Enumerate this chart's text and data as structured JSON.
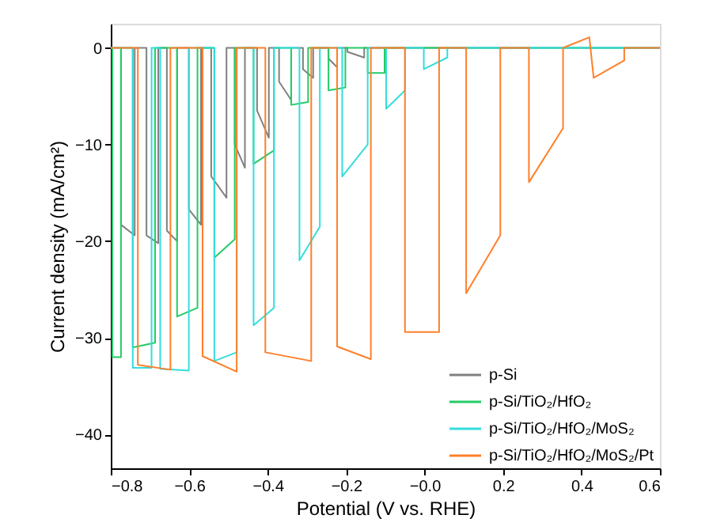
{
  "chart_data": {
    "type": "line",
    "xlabel": "Potential (V vs. RHE)",
    "ylabel": "Current density (mA/cm²)",
    "xlim": [
      -0.8,
      0.6
    ],
    "xticks": [
      -0.8,
      -0.6,
      -0.4,
      -0.2,
      {
        "value": 0,
        "label": "−0.0"
      },
      0.2,
      0.4,
      0.6
    ],
    "ylim": [
      -43.5,
      2.5
    ],
    "yticks": [
      -40,
      -30,
      -20,
      -10,
      0
    ],
    "grid": false,
    "legend": "bottom right",
    "series": [
      {
        "name": "p-Si",
        "color": "#808080",
        "x": [
          -0.8,
          -0.774,
          -0.774,
          -0.739,
          -0.739,
          -0.709,
          -0.709,
          -0.679,
          -0.679,
          -0.657,
          -0.657,
          -0.631,
          -0.631,
          -0.601,
          -0.601,
          -0.57,
          -0.57,
          -0.544,
          -0.544,
          -0.505,
          -0.505,
          -0.484,
          -0.484,
          -0.458,
          -0.458,
          -0.427,
          -0.427,
          -0.397,
          -0.397,
          -0.371,
          -0.371,
          -0.34,
          -0.34,
          -0.31,
          -0.31,
          -0.284,
          -0.284,
          -0.245,
          -0.245,
          -0.223,
          -0.223,
          -0.197,
          -0.197,
          -0.154,
          -0.154,
          0.6
        ],
        "values": [
          0,
          0,
          -18.3,
          -19.4,
          0,
          0,
          -19.4,
          -20.2,
          0,
          0,
          -18.9,
          -20,
          0,
          0,
          -16.7,
          -18.3,
          0,
          0,
          -13.3,
          -15.5,
          0,
          0,
          -10,
          -12.4,
          0,
          0,
          -6.5,
          -9.3,
          0,
          0,
          -3.5,
          -5.4,
          0,
          0,
          -2.2,
          -3.1,
          0,
          0,
          -1.1,
          -2,
          0,
          0,
          -0.4,
          -1,
          0,
          0
        ]
      },
      {
        "name": "p-Si/TiO₂/HfO₂",
        "color": "#22cc66",
        "x": [
          -0.8,
          -0.796,
          -0.796,
          -0.774,
          -0.774,
          -0.744,
          -0.744,
          -0.687,
          -0.687,
          -0.631,
          -0.631,
          -0.579,
          -0.579,
          -0.536,
          -0.536,
          -0.484,
          -0.484,
          -0.436,
          -0.436,
          -0.384,
          -0.384,
          -0.34,
          -0.34,
          -0.297,
          -0.297,
          -0.245,
          -0.245,
          -0.202,
          -0.202,
          -0.145,
          -0.145,
          -0.102,
          -0.102,
          0.6
        ],
        "values": [
          0,
          0,
          -32,
          -32,
          0,
          0,
          -31,
          -30.5,
          0,
          0,
          -27.8,
          -26.9,
          0,
          0,
          -21.7,
          -19.8,
          0,
          0,
          -12,
          -10.6,
          0,
          0,
          -5.9,
          -5.6,
          0,
          0,
          -4.4,
          -4.1,
          0,
          0,
          -2.6,
          -2.6,
          0,
          0
        ]
      },
      {
        "name": "p-Si/TiO₂/HfO₂/MoS₂",
        "color": "#33dddd",
        "x": [
          -0.8,
          -0.744,
          -0.744,
          -0.696,
          -0.696,
          -0.674,
          -0.674,
          -0.601,
          -0.601,
          -0.536,
          -0.536,
          -0.479,
          -0.479,
          -0.436,
          -0.436,
          -0.384,
          -0.384,
          -0.319,
          -0.319,
          -0.267,
          -0.267,
          -0.21,
          -0.21,
          -0.145,
          -0.145,
          -0.098,
          -0.098,
          -0.05,
          -0.05,
          -0.002,
          -0.002,
          0.058,
          0.058,
          0.6
        ],
        "values": [
          0,
          0,
          -33.1,
          -33.1,
          0,
          0,
          -33.2,
          -33.4,
          0,
          0,
          -32.4,
          -31.5,
          0,
          0,
          -28.7,
          -26.9,
          0,
          0,
          -22,
          -18.5,
          0,
          0,
          -13.3,
          -10,
          0,
          0,
          -6.3,
          -4.4,
          0,
          0,
          -2.2,
          -1,
          0,
          0
        ]
      },
      {
        "name": "p-Si/TiO₂/HfO₂/MoS₂/Pt",
        "color": "#ff7f2a",
        "x": [
          -0.8,
          -0.731,
          -0.731,
          -0.648,
          -0.648,
          -0.566,
          -0.566,
          -0.479,
          -0.479,
          -0.406,
          -0.406,
          -0.289,
          -0.289,
          -0.223,
          -0.223,
          -0.137,
          -0.137,
          -0.05,
          -0.05,
          0.037,
          0.037,
          0.106,
          0.106,
          0.193,
          0.193,
          0.266,
          0.266,
          0.353,
          0.353,
          0.42,
          0.431,
          0.509,
          0.509,
          0.6
        ],
        "values": [
          0,
          0,
          -32.8,
          -33.3,
          0,
          0,
          -31.9,
          -33.5,
          0,
          0,
          -31.5,
          -32.4,
          0,
          0,
          -30.9,
          -32.2,
          0,
          0,
          -29.4,
          -29.4,
          0,
          0,
          -25.4,
          -19.4,
          0,
          0,
          -13.9,
          -8.3,
          0,
          1.1,
          -3.1,
          -1.3,
          0,
          0
        ]
      }
    ]
  }
}
